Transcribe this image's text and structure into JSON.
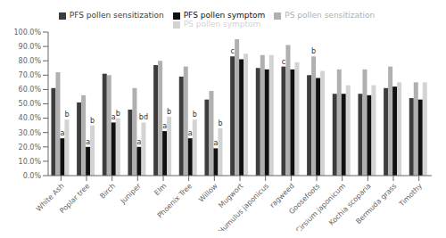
{
  "chart_data": {
    "type": "bar",
    "categories": [
      "White Ash",
      "Poplar tree",
      "Birch",
      "Juniper",
      "Elm",
      "Phoenix Tree",
      "Willow",
      "Mugwort",
      "Humulus japonicus",
      "ragweed",
      "Goosefoots",
      "Cirsium japonicum",
      "Kochia scoparia",
      "Bermuda grass",
      "Timothy"
    ],
    "series": [
      {
        "name": "PFS pollen sensitization",
        "color": "#3d3d3d",
        "values": [
          61,
          51,
          71,
          46,
          77,
          69,
          53,
          83,
          75,
          76,
          70,
          57,
          57,
          61,
          54
        ]
      },
      {
        "name": "PS pollen sensitization",
        "color": "#b0b0b0",
        "values": [
          72,
          56,
          70,
          61,
          80,
          76,
          59,
          95,
          84,
          91,
          83,
          74,
          74,
          76,
          65
        ]
      },
      {
        "name": "PFS pollen symptom",
        "color": "#111111",
        "values": [
          26,
          20,
          37,
          20,
          31,
          26,
          19,
          81,
          74,
          74,
          68,
          57,
          56,
          62,
          53
        ]
      },
      {
        "name": "PS pollen symptom",
        "color": "#d3d3d3",
        "values": [
          39,
          35,
          40,
          37,
          41,
          39,
          33,
          85,
          84,
          79,
          73,
          63,
          63,
          65,
          65
        ]
      }
    ],
    "annotations": [
      {
        "text": "a",
        "category": "White Ash",
        "series": "PFS pollen symptom"
      },
      {
        "text": "a",
        "category": "Poplar tree",
        "series": "PFS pollen symptom"
      },
      {
        "text": "a",
        "category": "Birch",
        "series": "PFS pollen symptom"
      },
      {
        "text": "a",
        "category": "Juniper",
        "series": "PFS pollen symptom"
      },
      {
        "text": "a",
        "category": "Elm",
        "series": "PFS pollen symptom"
      },
      {
        "text": "a",
        "category": "Phoenix Tree",
        "series": "PFS pollen symptom"
      },
      {
        "text": "a",
        "category": "Willow",
        "series": "PFS pollen symptom"
      },
      {
        "text": "b",
        "category": "White Ash",
        "series": "PS pollen symptom"
      },
      {
        "text": "b",
        "category": "Poplar tree",
        "series": "PS pollen symptom"
      },
      {
        "text": "b",
        "category": "Birch",
        "series": "PS pollen symptom"
      },
      {
        "text": "bd",
        "category": "Juniper",
        "series": "PS pollen symptom"
      },
      {
        "text": "b",
        "category": "Elm",
        "series": "PS pollen symptom"
      },
      {
        "text": "b",
        "category": "Phoenix Tree",
        "series": "PS pollen symptom"
      },
      {
        "text": "b",
        "category": "Willow",
        "series": "PS pollen symptom"
      },
      {
        "text": "c",
        "category": "Mugwort",
        "series": "PFS pollen sensitization"
      },
      {
        "text": "c",
        "category": "ragweed",
        "series": "PFS pollen sensitization"
      },
      {
        "text": "b",
        "category": "Goosefoots",
        "series": "PS pollen sensitization"
      }
    ],
    "ylim": [
      0,
      100
    ],
    "yticks": [
      {
        "value": 0,
        "label": "0.0%"
      },
      {
        "value": 10,
        "label": "10.0%"
      },
      {
        "value": 20,
        "label": "20.0%"
      },
      {
        "value": 30,
        "label": "30.0%"
      },
      {
        "value": 40,
        "label": "40.0%"
      },
      {
        "value": 50,
        "label": "50.0%"
      },
      {
        "value": 60,
        "label": "60.0%"
      },
      {
        "value": 70,
        "label": "70.0%"
      },
      {
        "value": 80,
        "label": "80.0%"
      },
      {
        "value": 90,
        "label": "90.0%"
      },
      {
        "value": 100,
        "label": "100.0%"
      }
    ],
    "legend": "top",
    "grid": false
  }
}
